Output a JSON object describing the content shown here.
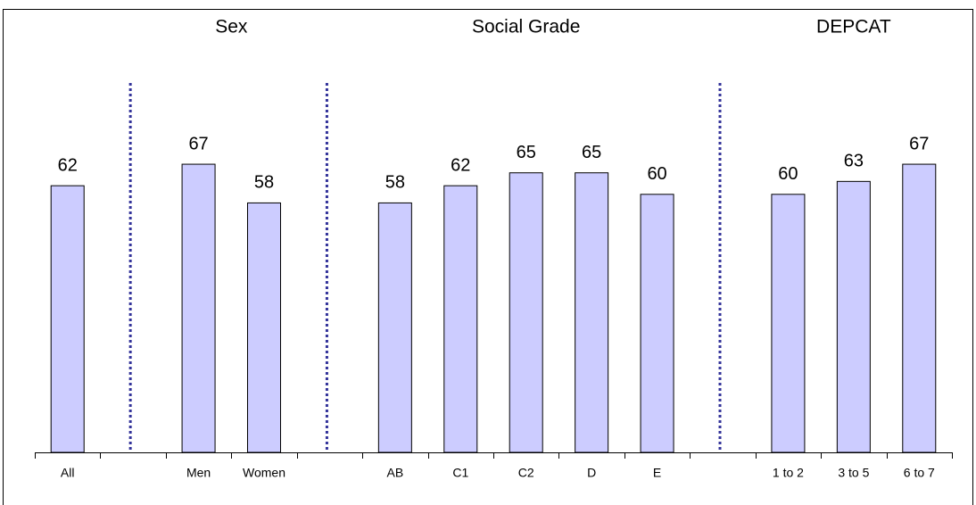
{
  "chart_data": {
    "type": "bar",
    "group_labels": [
      "Sex",
      "Social Grade",
      "DEPCAT"
    ],
    "categories": [
      "All",
      null,
      "Men",
      "Women",
      null,
      "AB",
      "C1",
      "C2",
      "D",
      "E",
      null,
      "1 to 2",
      "3 to 5",
      "6 to 7"
    ],
    "values": [
      62,
      null,
      67,
      58,
      null,
      58,
      62,
      65,
      65,
      60,
      null,
      60,
      63,
      67
    ],
    "color": "#ccccff",
    "ylim": [
      0,
      100
    ]
  }
}
